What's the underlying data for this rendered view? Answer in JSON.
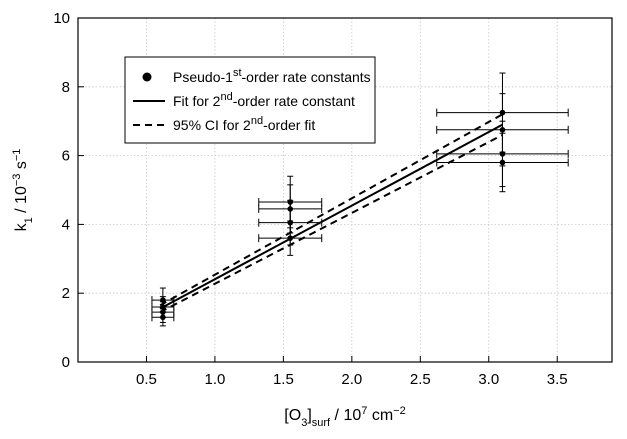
{
  "chart_data": {
    "type": "scatter",
    "xlabel": {
      "base": "[O",
      "sub1": "3",
      "mid": "]",
      "sub2": "surf",
      "tail": " / 10",
      "sup1": "7",
      "tail2": " cm",
      "sup2": "−2"
    },
    "ylabel": {
      "base": "k",
      "sub": "1",
      "mid": " / 10",
      "sup1": "−3",
      "tail": " s",
      "sup2": "−1"
    },
    "xlim": [
      0,
      3.9
    ],
    "ylim": [
      0,
      10
    ],
    "x_ticks": [
      0.5,
      1.0,
      1.5,
      2.0,
      2.5,
      3.0,
      3.5
    ],
    "x_tick_labels": [
      "0.5",
      "1.0",
      "1.5",
      "2.0",
      "2.5",
      "3.0",
      "3.5"
    ],
    "y_ticks": [
      0,
      2,
      4,
      6,
      8,
      10
    ],
    "y_tick_labels": [
      "0",
      "2",
      "4",
      "6",
      "8",
      "10"
    ],
    "grid": true,
    "legend_position": "top-left",
    "legend": [
      {
        "marker": "dot",
        "parts": [
          {
            "t": "Pseudo-1",
            "s": ""
          },
          {
            "t": "st",
            "s": "sup"
          },
          {
            "t": "-order rate constants",
            "s": ""
          }
        ]
      },
      {
        "marker": "solid-line",
        "parts": [
          {
            "t": "Fit for 2",
            "s": ""
          },
          {
            "t": "nd",
            "s": "sup"
          },
          {
            "t": "-order rate constant",
            "s": ""
          }
        ]
      },
      {
        "marker": "dashed-line",
        "parts": [
          {
            "t": "95% CI for 2",
            "s": ""
          },
          {
            "t": "nd",
            "s": "sup"
          },
          {
            "t": "-order fit",
            "s": ""
          }
        ]
      }
    ],
    "series": [
      {
        "role": "points",
        "points": [
          {
            "x": 0.62,
            "y": 1.8,
            "xerr": 0.08,
            "yerr": 0.35
          },
          {
            "x": 0.62,
            "y": 1.6,
            "xerr": 0.08,
            "yerr": 0.3
          },
          {
            "x": 0.62,
            "y": 1.45,
            "xerr": 0.08,
            "yerr": 0.3
          },
          {
            "x": 0.62,
            "y": 1.3,
            "xerr": 0.08,
            "yerr": 0.25
          },
          {
            "x": 1.55,
            "y": 4.65,
            "xerr": 0.23,
            "yerr": 0.75
          },
          {
            "x": 1.55,
            "y": 4.45,
            "xerr": 0.23,
            "yerr": 0.7
          },
          {
            "x": 1.55,
            "y": 4.05,
            "xerr": 0.23,
            "yerr": 0.65
          },
          {
            "x": 1.55,
            "y": 3.6,
            "xerr": 0.23,
            "yerr": 0.5
          },
          {
            "x": 3.1,
            "y": 7.25,
            "xerr": 0.48,
            "yerr": 1.15
          },
          {
            "x": 3.1,
            "y": 6.75,
            "xerr": 0.48,
            "yerr": 1.05
          },
          {
            "x": 3.1,
            "y": 6.05,
            "xerr": 0.48,
            "yerr": 0.95
          },
          {
            "x": 3.1,
            "y": 5.8,
            "xerr": 0.48,
            "yerr": 0.85
          }
        ]
      },
      {
        "role": "fit",
        "style": "solid",
        "x": [
          0.6,
          3.1
        ],
        "y": [
          1.55,
          6.9
        ]
      },
      {
        "role": "ci-upper",
        "style": "dashed",
        "x": [
          0.6,
          3.1
        ],
        "y": [
          1.65,
          7.2
        ]
      },
      {
        "role": "ci-lower",
        "style": "dashed",
        "x": [
          0.6,
          3.1
        ],
        "y": [
          1.45,
          6.6
        ]
      }
    ]
  }
}
